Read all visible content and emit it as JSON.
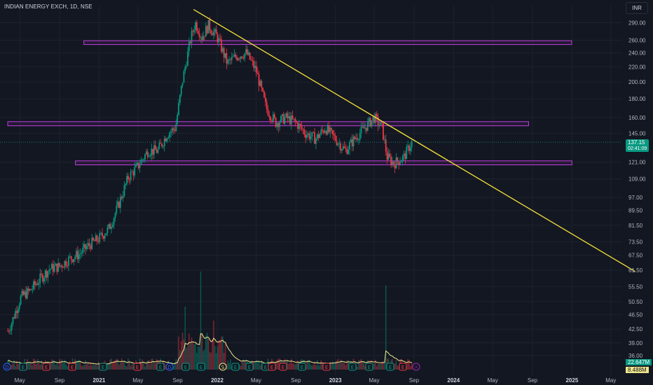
{
  "header": {
    "symbol_title": "INDIAN ENERGY EXCH, 1D, NSE",
    "currency": "INR"
  },
  "price_tag": {
    "price": "137.15",
    "countdown": "02:41:09",
    "color": "#089981"
  },
  "volume_tags": [
    {
      "value": "22.647M",
      "color": "#089981"
    },
    {
      "value": "8.488M",
      "color": "#f0e68c",
      "text_color": "#131722"
    }
  ],
  "event_markers": [
    {
      "label": "D",
      "color": "#2962ff"
    },
    {
      "label": "E",
      "color": "#089981"
    },
    {
      "label": "E",
      "color": "#f23645"
    },
    {
      "label": "E",
      "color": "#f23645"
    },
    {
      "label": "E",
      "color": "#089981"
    },
    {
      "label": "E",
      "color": "#f23645"
    },
    {
      "label": "E",
      "color": "#089981"
    },
    {
      "label": "D",
      "color": "#2962ff"
    },
    {
      "label": "E",
      "color": "#089981"
    },
    {
      "label": "E",
      "color": "#089981"
    },
    {
      "label": "S",
      "color": "#f0e68c"
    },
    {
      "label": "E",
      "color": "#089981"
    },
    {
      "label": "E",
      "color": "#089981"
    },
    {
      "label": "E",
      "color": "#089981"
    },
    {
      "label": "E",
      "color": "#f23645"
    },
    {
      "label": "E",
      "color": "#f23645"
    },
    {
      "label": "E",
      "color": "#089981"
    },
    {
      "label": "E",
      "color": "#f23645"
    },
    {
      "label": "E",
      "color": "#089981"
    },
    {
      "label": "E",
      "color": "#089981"
    },
    {
      "label": "E",
      "color": "#089981"
    },
    {
      "label": "E",
      "color": "#f23645"
    },
    {
      "label": "⚡",
      "color": "#9c27b0"
    },
    {
      "label": "E",
      "color": "#9c27b0"
    }
  ],
  "chart_data": {
    "type": "candlestick",
    "y_scale": "log",
    "y_ticks": [
      "290.00",
      "260.00",
      "240.00",
      "220.00",
      "200.00",
      "180.00",
      "160.00",
      "145.00",
      "121.00",
      "109.00",
      "97.00",
      "89.50",
      "81.50",
      "73.50",
      "67.50",
      "61.50",
      "55.50",
      "50.50",
      "46.50",
      "42.50",
      "39.00",
      "36.00"
    ],
    "x_ticks": [
      {
        "label": "May",
        "bold": false
      },
      {
        "label": "Sep",
        "bold": false
      },
      {
        "label": "2021",
        "bold": true
      },
      {
        "label": "May",
        "bold": false
      },
      {
        "label": "Sep",
        "bold": false
      },
      {
        "label": "2022",
        "bold": true
      },
      {
        "label": "May",
        "bold": false
      },
      {
        "label": "Sep",
        "bold": false
      },
      {
        "label": "2023",
        "bold": true
      },
      {
        "label": "May",
        "bold": false
      },
      {
        "label": "Sep",
        "bold": false
      },
      {
        "label": "2024",
        "bold": true
      },
      {
        "label": "May",
        "bold": false
      },
      {
        "label": "Sep",
        "bold": false
      },
      {
        "label": "2025",
        "bold": true
      },
      {
        "label": "May",
        "bold": false
      }
    ],
    "close_path": [
      [
        "2020-03-25",
        42
      ],
      [
        "2020-04-05",
        44
      ],
      [
        "2020-04-20",
        48
      ],
      [
        "2020-05-05",
        52
      ],
      [
        "2020-06-01",
        54
      ],
      [
        "2020-07-01",
        58
      ],
      [
        "2020-08-01",
        62
      ],
      [
        "2020-09-01",
        63
      ],
      [
        "2020-10-01",
        66
      ],
      [
        "2020-11-01",
        68
      ],
      [
        "2020-12-01",
        72
      ],
      [
        "2021-01-01",
        75
      ],
      [
        "2021-02-01",
        80
      ],
      [
        "2021-03-01",
        92
      ],
      [
        "2021-04-01",
        110
      ],
      [
        "2021-05-01",
        118
      ],
      [
        "2021-06-01",
        130
      ],
      [
        "2021-07-01",
        130
      ],
      [
        "2021-08-01",
        145
      ],
      [
        "2021-08-25",
        150
      ],
      [
        "2021-09-15",
        200
      ],
      [
        "2021-10-10",
        260
      ],
      [
        "2021-10-25",
        290
      ],
      [
        "2021-11-15",
        265
      ],
      [
        "2021-12-05",
        285
      ],
      [
        "2022-01-01",
        265
      ],
      [
        "2022-02-01",
        225
      ],
      [
        "2022-03-01",
        235
      ],
      [
        "2022-04-01",
        240
      ],
      [
        "2022-05-01",
        215
      ],
      [
        "2022-06-01",
        170
      ],
      [
        "2022-07-01",
        155
      ],
      [
        "2022-08-01",
        160
      ],
      [
        "2022-09-01",
        155
      ],
      [
        "2022-10-01",
        145
      ],
      [
        "2022-11-01",
        140
      ],
      [
        "2022-12-01",
        150
      ],
      [
        "2023-01-01",
        140
      ],
      [
        "2023-02-01",
        130
      ],
      [
        "2023-03-01",
        140
      ],
      [
        "2023-04-01",
        150
      ],
      [
        "2023-05-01",
        160
      ],
      [
        "2023-05-25",
        150
      ],
      [
        "2023-06-10",
        125
      ],
      [
        "2023-07-01",
        120
      ],
      [
        "2023-08-01",
        125
      ],
      [
        "2023-08-25",
        137.15
      ]
    ],
    "volume_millions_peaks": [
      [
        "2021-09-25",
        45
      ],
      [
        "2021-11-10",
        70
      ],
      [
        "2021-12-20",
        35
      ],
      [
        "2023-06-05",
        60
      ]
    ],
    "support_resistance_zones": [
      {
        "from": "2020-11-15",
        "to": "2024-12-31",
        "low": 253,
        "high": 259
      },
      {
        "from": "2020-03-25",
        "to": "2024-08-20",
        "low": 152,
        "high": 156
      },
      {
        "from": "2020-10-20",
        "to": "2025-01-01",
        "low": 119,
        "high": 122
      }
    ],
    "trendline": {
      "from": [
        "2021-10-20",
        315
      ],
      "to": [
        "2025-07-15",
        61
      ]
    },
    "ylim": [
      36,
      320
    ]
  }
}
